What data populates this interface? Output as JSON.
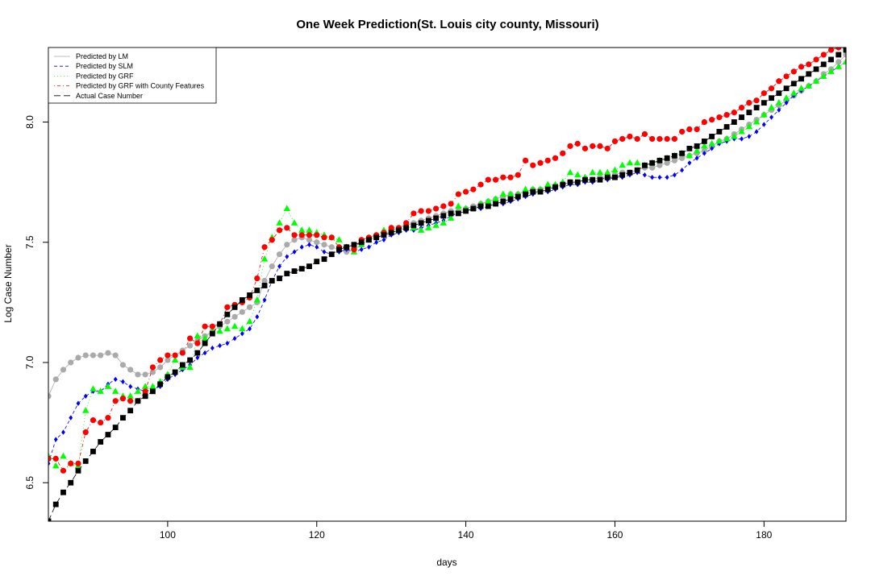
{
  "chart_data": {
    "type": "scatter",
    "title": "One Week Prediction(St. Louis city county, Missouri)",
    "xlabel": "days",
    "ylabel": "Log Case Number",
    "xlim": [
      84,
      191
    ],
    "ylim": [
      6.34,
      8.31
    ],
    "x_ticks": [
      100,
      120,
      140,
      160,
      180
    ],
    "y_ticks": [
      6.5,
      7.0,
      7.5,
      8.0
    ],
    "grid": false,
    "legend_position": "top-left",
    "x": [
      84,
      85,
      86,
      87,
      88,
      89,
      90,
      91,
      92,
      93,
      94,
      95,
      96,
      97,
      98,
      99,
      100,
      101,
      102,
      103,
      104,
      105,
      106,
      107,
      108,
      109,
      110,
      111,
      112,
      113,
      114,
      115,
      116,
      117,
      118,
      119,
      120,
      121,
      122,
      123,
      124,
      125,
      126,
      127,
      128,
      129,
      130,
      131,
      132,
      133,
      134,
      135,
      136,
      137,
      138,
      139,
      140,
      141,
      142,
      143,
      144,
      145,
      146,
      147,
      148,
      149,
      150,
      151,
      152,
      153,
      154,
      155,
      156,
      157,
      158,
      159,
      160,
      161,
      162,
      163,
      164,
      165,
      166,
      167,
      168,
      169,
      170,
      171,
      172,
      173,
      174,
      175,
      176,
      177,
      178,
      179,
      180,
      181,
      182,
      183,
      184,
      185,
      186,
      187,
      188,
      189,
      190,
      191
    ],
    "series": [
      {
        "name": "Predicted by LM",
        "color": "#aaaaaa",
        "marker": "circle",
        "line_style": "solid",
        "values": [
          6.86,
          6.93,
          6.97,
          7.0,
          7.02,
          7.03,
          7.03,
          7.03,
          7.04,
          7.03,
          6.99,
          6.97,
          6.95,
          6.95,
          6.96,
          6.98,
          7.01,
          7.03,
          7.05,
          7.07,
          7.09,
          7.11,
          7.13,
          7.15,
          7.17,
          7.19,
          7.21,
          7.23,
          7.25,
          7.34,
          7.4,
          7.45,
          7.49,
          7.51,
          7.52,
          7.51,
          7.5,
          7.49,
          7.48,
          7.47,
          7.46,
          7.47,
          7.49,
          7.51,
          7.52,
          7.53,
          7.55,
          7.56,
          7.57,
          7.58,
          7.59,
          7.6,
          7.61,
          7.62,
          7.63,
          7.63,
          7.64,
          7.65,
          7.66,
          7.67,
          7.68,
          7.69,
          7.7,
          7.7,
          7.71,
          7.72,
          7.72,
          7.73,
          7.73,
          7.74,
          7.75,
          7.75,
          7.76,
          7.76,
          7.77,
          7.77,
          7.78,
          7.79,
          7.79,
          7.8,
          7.81,
          7.81,
          7.82,
          7.83,
          7.84,
          7.85,
          7.86,
          7.87,
          7.88,
          7.9,
          7.92,
          7.93,
          7.95,
          7.97,
          7.99,
          8.01,
          8.03,
          8.05,
          8.07,
          8.09,
          8.11,
          8.13,
          8.15,
          8.17,
          8.2,
          8.22,
          8.25,
          8.28
        ]
      },
      {
        "name": "Predicted by SLM",
        "color": "#0000ff",
        "marker": "diamond",
        "line_style": "dashed",
        "values": [
          6.58,
          6.68,
          6.71,
          6.77,
          6.83,
          6.86,
          6.88,
          6.88,
          6.91,
          6.93,
          6.92,
          6.9,
          6.89,
          6.88,
          6.89,
          6.9,
          6.93,
          6.95,
          6.97,
          6.99,
          7.02,
          7.04,
          7.06,
          7.07,
          7.08,
          7.1,
          7.12,
          7.14,
          7.19,
          7.26,
          7.34,
          7.4,
          7.44,
          7.46,
          7.48,
          7.49,
          7.48,
          7.46,
          7.45,
          7.46,
          7.47,
          7.46,
          7.47,
          7.48,
          7.5,
          7.51,
          7.53,
          7.54,
          7.55,
          7.55,
          7.56,
          7.57,
          7.58,
          7.59,
          7.61,
          7.62,
          7.63,
          7.64,
          7.64,
          7.65,
          7.66,
          7.66,
          7.67,
          7.68,
          7.69,
          7.7,
          7.71,
          7.71,
          7.72,
          7.73,
          7.74,
          7.74,
          7.75,
          7.75,
          7.76,
          7.76,
          7.77,
          7.77,
          7.78,
          7.79,
          7.78,
          7.77,
          7.77,
          7.77,
          7.78,
          7.8,
          7.83,
          7.85,
          7.87,
          7.89,
          7.91,
          7.92,
          7.93,
          7.93,
          7.94,
          7.96,
          7.99,
          8.02,
          8.05,
          8.08,
          8.11,
          8.13,
          8.15,
          8.17,
          8.19,
          8.21,
          8.23,
          8.25
        ]
      },
      {
        "name": "Predicted by GRF",
        "color": "#00ff00",
        "marker": "triangle",
        "line_style": "dotted",
        "values": [
          6.61,
          6.57,
          6.61,
          6.58,
          6.57,
          6.8,
          6.89,
          6.88,
          6.9,
          6.88,
          6.86,
          6.86,
          6.88,
          6.9,
          6.9,
          6.92,
          6.95,
          7.01,
          6.98,
          6.98,
          7.11,
          7.1,
          7.13,
          7.13,
          7.14,
          7.15,
          7.14,
          7.17,
          7.26,
          7.43,
          7.52,
          7.58,
          7.64,
          7.58,
          7.55,
          7.55,
          7.54,
          7.53,
          7.52,
          7.51,
          7.48,
          7.46,
          7.49,
          7.51,
          7.53,
          7.55,
          7.56,
          7.55,
          7.57,
          7.56,
          7.55,
          7.56,
          7.57,
          7.58,
          7.6,
          7.65,
          7.64,
          7.64,
          7.66,
          7.67,
          7.68,
          7.7,
          7.7,
          7.7,
          7.72,
          7.72,
          7.72,
          7.74,
          7.74,
          7.75,
          7.79,
          7.78,
          7.77,
          7.79,
          7.79,
          7.79,
          7.8,
          7.82,
          7.83,
          7.83,
          7.82,
          7.83,
          7.84,
          7.85,
          7.86,
          7.87,
          7.86,
          7.88,
          7.9,
          7.91,
          7.92,
          7.93,
          7.94,
          7.96,
          7.98,
          8.0,
          8.03,
          8.06,
          8.08,
          8.1,
          8.12,
          8.14,
          8.15,
          8.17,
          8.19,
          8.21,
          8.23,
          8.25
        ]
      },
      {
        "name": "Predicted by GRF with County Features",
        "color": "#ff0000",
        "marker": "circle",
        "line_style": "dotdash",
        "values": [
          6.6,
          6.6,
          6.55,
          6.58,
          6.58,
          6.71,
          6.76,
          6.75,
          6.77,
          6.84,
          6.85,
          6.84,
          6.84,
          6.88,
          6.98,
          7.01,
          7.03,
          7.03,
          7.04,
          7.1,
          7.08,
          7.15,
          7.15,
          7.16,
          7.23,
          7.24,
          7.25,
          7.27,
          7.35,
          7.48,
          7.51,
          7.55,
          7.56,
          7.53,
          7.53,
          7.53,
          7.53,
          7.52,
          7.52,
          7.48,
          7.48,
          7.47,
          7.51,
          7.52,
          7.53,
          7.54,
          7.56,
          7.56,
          7.58,
          7.62,
          7.63,
          7.63,
          7.64,
          7.65,
          7.66,
          7.7,
          7.71,
          7.72,
          7.74,
          7.76,
          7.76,
          7.77,
          7.77,
          7.78,
          7.84,
          7.82,
          7.83,
          7.84,
          7.85,
          7.87,
          7.9,
          7.91,
          7.89,
          7.9,
          7.9,
          7.89,
          7.92,
          7.93,
          7.94,
          7.93,
          7.95,
          7.93,
          7.93,
          7.93,
          7.93,
          7.96,
          7.97,
          7.97,
          8.0,
          8.01,
          8.02,
          8.03,
          8.04,
          8.06,
          8.08,
          8.09,
          8.12,
          8.14,
          8.17,
          8.19,
          8.21,
          8.23,
          8.24,
          8.26,
          8.28,
          8.3,
          8.31,
          8.31
        ]
      },
      {
        "name": "Actual Case Number",
        "color": "#000000",
        "marker": "square",
        "line_style": "longdash",
        "values": [
          6.34,
          6.41,
          6.46,
          6.5,
          6.55,
          6.59,
          6.63,
          6.67,
          6.7,
          6.73,
          6.77,
          6.8,
          6.84,
          6.86,
          6.88,
          6.91,
          6.94,
          6.96,
          6.99,
          7.01,
          7.04,
          7.08,
          7.12,
          7.16,
          7.2,
          7.23,
          7.26,
          7.28,
          7.3,
          7.32,
          7.34,
          7.35,
          7.37,
          7.38,
          7.39,
          7.4,
          7.42,
          7.43,
          7.45,
          7.47,
          7.48,
          7.49,
          7.5,
          7.51,
          7.52,
          7.53,
          7.54,
          7.55,
          7.56,
          7.57,
          7.58,
          7.59,
          7.6,
          7.61,
          7.62,
          7.62,
          7.63,
          7.64,
          7.65,
          7.65,
          7.66,
          7.67,
          7.68,
          7.69,
          7.7,
          7.71,
          7.71,
          7.72,
          7.73,
          7.74,
          7.75,
          7.75,
          7.76,
          7.76,
          7.76,
          7.77,
          7.77,
          7.78,
          7.79,
          7.8,
          7.82,
          7.83,
          7.84,
          7.85,
          7.86,
          7.87,
          7.89,
          7.9,
          7.92,
          7.94,
          7.96,
          7.98,
          8.0,
          8.02,
          8.04,
          8.06,
          8.08,
          8.1,
          8.12,
          8.14,
          8.16,
          8.18,
          8.2,
          8.22,
          8.24,
          8.26,
          8.28,
          8.3
        ]
      }
    ]
  }
}
